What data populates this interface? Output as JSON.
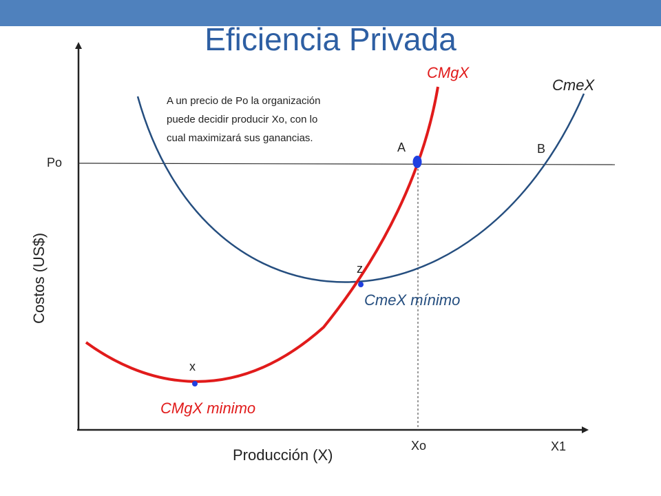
{
  "slide": {
    "title": "Eficiencia Privada"
  },
  "annotation": [
    "A un precio de Po la organización",
    "puede decidir producir Xo, con lo",
    "cual maximizará sus ganancias."
  ],
  "curves": {
    "cmgx": {
      "label": "CMgX",
      "color": "#e11b1b"
    },
    "cmex": {
      "label": "CmeX",
      "color": "#254e7f"
    }
  },
  "points": {
    "a": "A",
    "b": "B",
    "z": "z",
    "x": "x"
  },
  "point_color": "#1f3fe0",
  "labels": {
    "cmex_min": "CmeX mínimo",
    "cmgx_min": "CMgX minimo",
    "po": "Po",
    "xo": "Xo",
    "x1": "X1",
    "y_axis": "Costos (US$)",
    "x_axis": "Producción (X)"
  }
}
